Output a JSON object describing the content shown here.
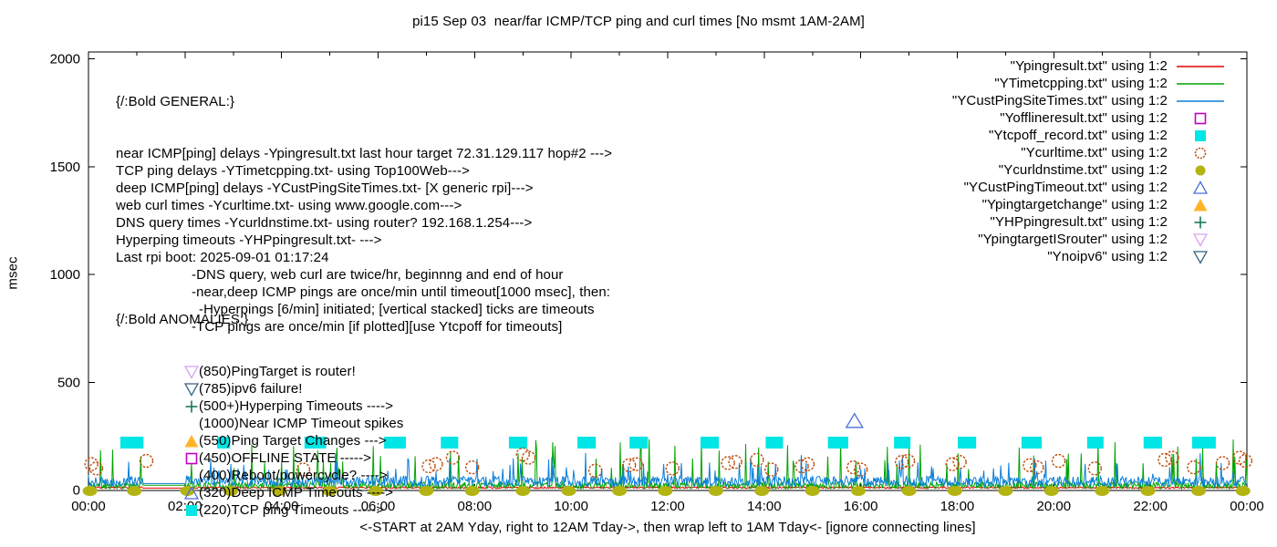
{
  "title": "pi15 Sep 03  near/far ICMP/TCP ping and curl times [No msmt 1AM-2AM]",
  "axes": {
    "ylabel": "msec",
    "xlabel": "<-START at 2AM Yday, right to 12AM Tday->, then wrap left to 1AM Tday<- [ignore connecting lines]",
    "y_ticks": [
      "0",
      "500",
      "1000",
      "1500",
      "2000"
    ],
    "x_ticks": [
      "00:00",
      "02:00",
      "04:00",
      "06:00",
      "08:00",
      "10:00",
      "12:00",
      "14:00",
      "16:00",
      "18:00",
      "20:00",
      "22:00",
      "00:00"
    ]
  },
  "general_block": {
    "heading": "{/:Bold GENERAL:}",
    "lines": [
      {
        "indent": 0,
        "text": "near ICMP[ping] delays -Ypingresult.txt last hour target 72.31.129.117 hop#2 --->"
      },
      {
        "indent": 0,
        "text": "TCP ping delays -YTimetcpping.txt- using Top100Web--->"
      },
      {
        "indent": 0,
        "text": "deep ICMP[ping] delays -YCustPingSiteTimes.txt- [X generic rpi]--->"
      },
      {
        "indent": 0,
        "text": "web curl times -Ycurltime.txt- using www.google.com--->"
      },
      {
        "indent": 0,
        "text": "DNS query times -Ycurldnstime.txt- using router? 192.168.1.254--->"
      },
      {
        "indent": 0,
        "text": "Hyperping timeouts -YHPpingresult.txt- --->"
      },
      {
        "indent": 0,
        "text": "Last rpi boot: 2025-09-01 01:17:24"
      },
      {
        "indent": 1,
        "text": "-DNS query, web curl are twice/hr, beginnng and end of hour"
      },
      {
        "indent": 1,
        "text": "-near,deep ICMP pings are once/min until timeout[1000 msec], then:"
      },
      {
        "indent": 2,
        "text": "-Hyperpings [6/min] initiated; [vertical stacked] ticks are timeouts"
      },
      {
        "indent": 1,
        "text": "-TCP pings are once/min [if plotted][use Ytcpoff for timeouts]"
      }
    ]
  },
  "anomalies_block": {
    "heading": "{/:Bold ANOMALIES:}",
    "rows": [
      {
        "marker": "triangle-down-open",
        "color": "#d9a0f2",
        "label": "(850)PingTarget is router!"
      },
      {
        "marker": "triangle-down-open",
        "color": "#35647e",
        "label": "(785)ipv6 failure!"
      },
      {
        "marker": "plus",
        "color": "#1a7a52",
        "label": "(500+)Hyperping Timeouts ---->"
      },
      {
        "marker": "none",
        "color": "",
        "label": "(1000)Near ICMP Timeout spikes"
      },
      {
        "marker": "triangle-up-filled",
        "color": "#ffb428",
        "label": "(550)Ping Target Changes --->"
      },
      {
        "marker": "square-open",
        "color": "#c400c4",
        "label": "(450)OFFLINE STATE ----->"
      },
      {
        "marker": "none",
        "color": "",
        "label": "(400)Reboot/powercycle? ---->"
      },
      {
        "marker": "triangle-up-open",
        "color": "#4a6fd8",
        "label": "(320)Deep ICMP Timeouts ---->"
      },
      {
        "marker": "square-filled",
        "color": "#00e5e5",
        "label": "(220)TCP ping Timeouts ----->"
      }
    ]
  },
  "legend": {
    "entries": [
      {
        "label": "\"Ypingresult.txt\" using 1:2",
        "marker": "line",
        "color": "#e60000"
      },
      {
        "label": "\"YTimetcpping.txt\" using 1:2",
        "marker": "line",
        "color": "#00a400"
      },
      {
        "label": "\"YCustPingSiteTimes.txt\" using 1:2",
        "marker": "line",
        "color": "#0b7fd9"
      },
      {
        "label": "\"Yofflineresult.txt\" using 1:2",
        "marker": "square-open",
        "color": "#c400c4"
      },
      {
        "label": "\"Ytcpoff_record.txt\" using 1:2",
        "marker": "square-filled",
        "color": "#00e5e5"
      },
      {
        "label": "\"Ycurltime.txt\" using 1:2",
        "marker": "circle-open",
        "color": "#bf4a0a"
      },
      {
        "label": "\"Ycurldnstime.txt\" using 1:2",
        "marker": "circle-filled",
        "color": "#b3b312"
      },
      {
        "label": "\"YCustPingTimeout.txt\" using 1:2",
        "marker": "triangle-up-open",
        "color": "#4a6fd8"
      },
      {
        "label": "\"Ypingtargetchange\" using 1:2",
        "marker": "triangle-up-filled",
        "color": "#ffb428"
      },
      {
        "label": "\"YHPpingresult.txt\" using 1:2",
        "marker": "plus",
        "color": "#1a7a52"
      },
      {
        "label": "\"YpingtargetISrouter\" using 1:2",
        "marker": "triangle-down-open",
        "color": "#d9a0f2"
      },
      {
        "label": "\"Ynoipv6\" using 1:2",
        "marker": "triangle-down-open",
        "color": "#35647e"
      }
    ]
  },
  "chart_data": {
    "type": "line",
    "title": "pi15 Sep 03  near/far ICMP/TCP ping and curl times [No msmt 1AM-2AM]",
    "xlabel": "<-START at 2AM Yday, right to 12AM Tday->, then wrap left to 1AM Tday<- [ignore connecting lines]",
    "ylabel": "msec",
    "ylim": [
      0,
      2000
    ],
    "x_hours": [
      0,
      24
    ],
    "x_tick_step_hours": 2,
    "grid": false,
    "legend_position": "inside-top-right",
    "no_measurement_gap_hours": [
      1.13,
      2.03
    ],
    "line_series": [
      {
        "name": "Ypingresult.txt",
        "color": "#e60000",
        "baseline_msec": 7,
        "noise_msec": 8,
        "spike_chance": 0.0,
        "spike_msec": 0,
        "gap_value_msec": 9,
        "seed": 3
      },
      {
        "name": "YTimetcpping.txt",
        "color": "#00a400",
        "baseline_msec": 5,
        "noise_msec": 32,
        "spike_chance": 0.06,
        "spike_msec": 210,
        "gap_value_msec": 22,
        "seed": 11
      },
      {
        "name": "YCustPingSiteTimes.txt",
        "color": "#0b7fd9",
        "baseline_msec": 16,
        "noise_msec": 48,
        "spike_chance": 0.05,
        "spike_msec": 110,
        "gap_value_msec": 30,
        "seed": 27
      }
    ],
    "tcp_timeout_marks": {
      "name": "Ytcpoff_record.txt",
      "color": "#00e5e5",
      "y_msec": 220,
      "clusters": [
        {
          "hour": 0.9,
          "width_hours": 0.48
        },
        {
          "hour": 2.8,
          "width_hours": 0.27
        },
        {
          "hour": 4.7,
          "width_hours": 0.45
        },
        {
          "hour": 6.35,
          "width_hours": 0.45
        },
        {
          "hour": 7.48,
          "width_hours": 0.36
        },
        {
          "hour": 8.9,
          "width_hours": 0.38
        },
        {
          "hour": 10.32,
          "width_hours": 0.38
        },
        {
          "hour": 11.4,
          "width_hours": 0.38
        },
        {
          "hour": 12.87,
          "width_hours": 0.38
        },
        {
          "hour": 14.21,
          "width_hours": 0.36
        },
        {
          "hour": 15.53,
          "width_hours": 0.42
        },
        {
          "hour": 16.86,
          "width_hours": 0.34
        },
        {
          "hour": 18.2,
          "width_hours": 0.38
        },
        {
          "hour": 19.54,
          "width_hours": 0.42
        },
        {
          "hour": 20.86,
          "width_hours": 0.34
        },
        {
          "hour": 22.05,
          "width_hours": 0.38
        },
        {
          "hour": 23.11,
          "width_hours": 0.49
        }
      ]
    },
    "curl_points": {
      "name": "Ycurltime.txt",
      "color": "#bf4a0a",
      "points": [
        [
          0.06,
          120
        ],
        [
          0.16,
          100
        ],
        [
          1.2,
          135
        ],
        [
          4.45,
          95
        ],
        [
          7.05,
          110
        ],
        [
          7.2,
          120
        ],
        [
          7.55,
          150
        ],
        [
          7.95,
          105
        ],
        [
          9.0,
          165
        ],
        [
          9.12,
          150
        ],
        [
          10.5,
          90
        ],
        [
          11.2,
          115
        ],
        [
          11.34,
          120
        ],
        [
          12.1,
          100
        ],
        [
          13.25,
          125
        ],
        [
          13.4,
          130
        ],
        [
          13.85,
          140
        ],
        [
          14.15,
          95
        ],
        [
          14.78,
          110
        ],
        [
          14.9,
          120
        ],
        [
          15.85,
          105
        ],
        [
          16.0,
          95
        ],
        [
          16.85,
          130
        ],
        [
          16.98,
          135
        ],
        [
          17.9,
          120
        ],
        [
          18.05,
          130
        ],
        [
          19.5,
          115
        ],
        [
          19.65,
          105
        ],
        [
          20.1,
          135
        ],
        [
          20.85,
          100
        ],
        [
          22.3,
          140
        ],
        [
          22.45,
          150
        ],
        [
          22.9,
          105
        ],
        [
          23.5,
          125
        ],
        [
          23.85,
          150
        ],
        [
          23.97,
          135
        ]
      ]
    },
    "dns_points": {
      "name": "Ycurldnstime.txt",
      "color": "#b3b312",
      "y_msec": 0,
      "hours": [
        0.03,
        0.95,
        2.05,
        2.95,
        3.95,
        5.0,
        5.95,
        7.0,
        7.95,
        9.0,
        9.95,
        11.0,
        11.95,
        13.0,
        13.95,
        15.0,
        15.95,
        17.0,
        17.95,
        19.0,
        19.95,
        21.0,
        21.95,
        23.0,
        23.92
      ]
    },
    "deep_icmp_timeout_points": {
      "name": "YCustPingTimeout.txt",
      "color": "#4a6fd8",
      "points": [
        [
          15.87,
          320
        ]
      ]
    }
  }
}
